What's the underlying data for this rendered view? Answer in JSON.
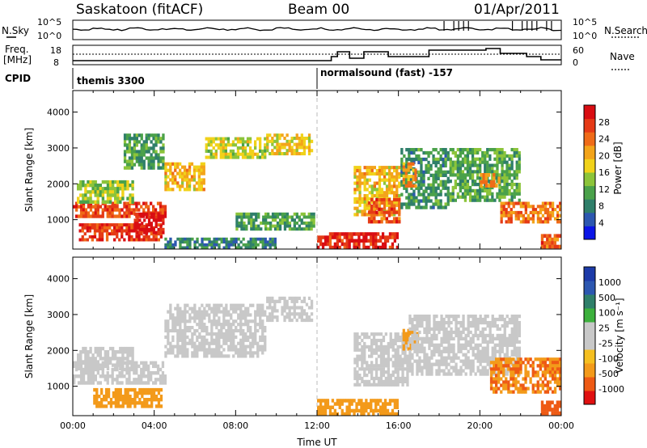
{
  "header": {
    "title": "Saskatoon (fitACF)",
    "beam": "Beam 00",
    "date": "01/Apr/2011"
  },
  "noise_panel": {
    "left_label": "N.Sky",
    "left_ticks": [
      "10^5",
      "10^0"
    ],
    "right_label": "N.Search",
    "right_ticks": [
      "10^5",
      "10^0"
    ]
  },
  "freq_panel": {
    "left_label_1": "Freq.",
    "left_label_2": "[MHz]",
    "left_ticks": [
      "18",
      "8"
    ],
    "right_label": "Nave",
    "right_ticks": [
      "60",
      "0"
    ]
  },
  "cpid": {
    "label": "CPID",
    "segments": [
      {
        "text": "themis 3300",
        "start_hour": 0
      },
      {
        "text": "normalsound (fast) -157",
        "start_hour": 12
      }
    ]
  },
  "colors": {
    "power": [
      "#0b15e6",
      "#2c57b0",
      "#2f7f6a",
      "#4aa14a",
      "#8cc43a",
      "#f1d21a",
      "#f3a41a",
      "#ef6b18",
      "#e53a16",
      "#d90d12"
    ],
    "velocity": [
      "#e01010",
      "#ee5a14",
      "#f39a1a",
      "#f5bf20",
      "#c8c8c8",
      "#c8c8c8",
      "#3cb03c",
      "#2f7f6a",
      "#2c57b0",
      "#1c3aa8"
    ],
    "velocity_gray": "#c8c8c8"
  },
  "chart_data": [
    {
      "type": "heatmap",
      "title": "",
      "xlabel": "",
      "ylabel": "Slant Range [km]",
      "xlim": [
        0,
        24
      ],
      "ylim": [
        180,
        4600
      ],
      "ytick_labels": [
        "1000",
        "2000",
        "3000",
        "4000"
      ],
      "colorbar_label": "Power [dB]",
      "colorbar_ticks": [
        "4",
        "8",
        "12",
        "16",
        "20",
        "24",
        "28"
      ],
      "colorbar_range": [
        0,
        30
      ],
      "regions": [
        {
          "t": [
            0.0,
            4.6
          ],
          "r": [
            1050,
            1500
          ],
          "v": 25
        },
        {
          "t": [
            0.3,
            4.4
          ],
          "r": [
            400,
            900
          ],
          "v": 26
        },
        {
          "t": [
            3.0,
            4.5
          ],
          "r": [
            600,
            1200
          ],
          "v": 29
        },
        {
          "t": [
            0.2,
            3.0
          ],
          "r": [
            1450,
            2100
          ],
          "v": 14
        },
        {
          "t": [
            2.5,
            4.5
          ],
          "r": [
            2400,
            3400
          ],
          "v": 10
        },
        {
          "t": [
            4.5,
            6.5
          ],
          "r": [
            1800,
            2600
          ],
          "v": 18
        },
        {
          "t": [
            6.5,
            9.5
          ],
          "r": [
            2700,
            3300
          ],
          "v": 15
        },
        {
          "t": [
            9.5,
            11.8
          ],
          "r": [
            2800,
            3400
          ],
          "v": 17
        },
        {
          "t": [
            8.0,
            11.9
          ],
          "r": [
            700,
            1200
          ],
          "v": 10
        },
        {
          "t": [
            4.5,
            10.0
          ],
          "r": [
            180,
            500
          ],
          "v": 8
        },
        {
          "t": [
            12.0,
            16.0
          ],
          "r": [
            180,
            650
          ],
          "v": 27
        },
        {
          "t": [
            13.8,
            16.1
          ],
          "r": [
            1100,
            2500
          ],
          "v": 18
        },
        {
          "t": [
            14.5,
            16.1
          ],
          "r": [
            900,
            1600
          ],
          "v": 24
        },
        {
          "t": [
            16.1,
            18.5
          ],
          "r": [
            1300,
            3000
          ],
          "v": 9
        },
        {
          "t": [
            16.2,
            16.9
          ],
          "r": [
            1900,
            2600
          ],
          "v": 20
        },
        {
          "t": [
            18.5,
            22.0
          ],
          "r": [
            1500,
            3000
          ],
          "v": 11
        },
        {
          "t": [
            20.0,
            21.0
          ],
          "r": [
            1900,
            2300
          ],
          "v": 22
        },
        {
          "t": [
            21.0,
            24.0
          ],
          "r": [
            900,
            1500
          ],
          "v": 22
        },
        {
          "t": [
            23.0,
            24.0
          ],
          "r": [
            200,
            600
          ],
          "v": 24
        }
      ]
    },
    {
      "type": "heatmap",
      "title": "",
      "xlabel": "Time UT",
      "ylabel": "Slant Range [km]",
      "xlim": [
        0,
        24
      ],
      "ylim": [
        180,
        4600
      ],
      "xtick_labels": [
        "00:00",
        "04:00",
        "08:00",
        "12:00",
        "16:00",
        "20:00",
        "00:00"
      ],
      "ytick_labels": [
        "1000",
        "2000",
        "3000",
        "4000"
      ],
      "colorbar_label": "Velocity [m s⁻¹]",
      "colorbar_ticks": [
        "1000",
        "500",
        "100",
        "25",
        "-25",
        "-100",
        "-500",
        "-1000"
      ],
      "regions": [
        {
          "t": [
            0.0,
            4.6
          ],
          "r": [
            1050,
            1700
          ],
          "v": 0
        },
        {
          "t": [
            1.0,
            4.4
          ],
          "r": [
            400,
            950
          ],
          "v": -150
        },
        {
          "t": [
            0.2,
            3.0
          ],
          "r": [
            1450,
            2100
          ],
          "v": 0
        },
        {
          "t": [
            4.5,
            9.5
          ],
          "r": [
            1800,
            3300
          ],
          "v": 0
        },
        {
          "t": [
            9.5,
            11.8
          ],
          "r": [
            2800,
            3500
          ],
          "v": 0
        },
        {
          "t": [
            12.0,
            16.0
          ],
          "r": [
            180,
            650
          ],
          "v": -150
        },
        {
          "t": [
            13.8,
            16.5
          ],
          "r": [
            1000,
            2500
          ],
          "v": 0
        },
        {
          "t": [
            16.2,
            17.0
          ],
          "r": [
            2000,
            2600
          ],
          "v": -300
        },
        {
          "t": [
            16.5,
            22.0
          ],
          "r": [
            1300,
            3000
          ],
          "v": 0
        },
        {
          "t": [
            20.5,
            24.0
          ],
          "r": [
            800,
            1800
          ],
          "v": -500
        },
        {
          "t": [
            23.0,
            24.0
          ],
          "r": [
            200,
            600
          ],
          "v": -700
        }
      ]
    }
  ]
}
